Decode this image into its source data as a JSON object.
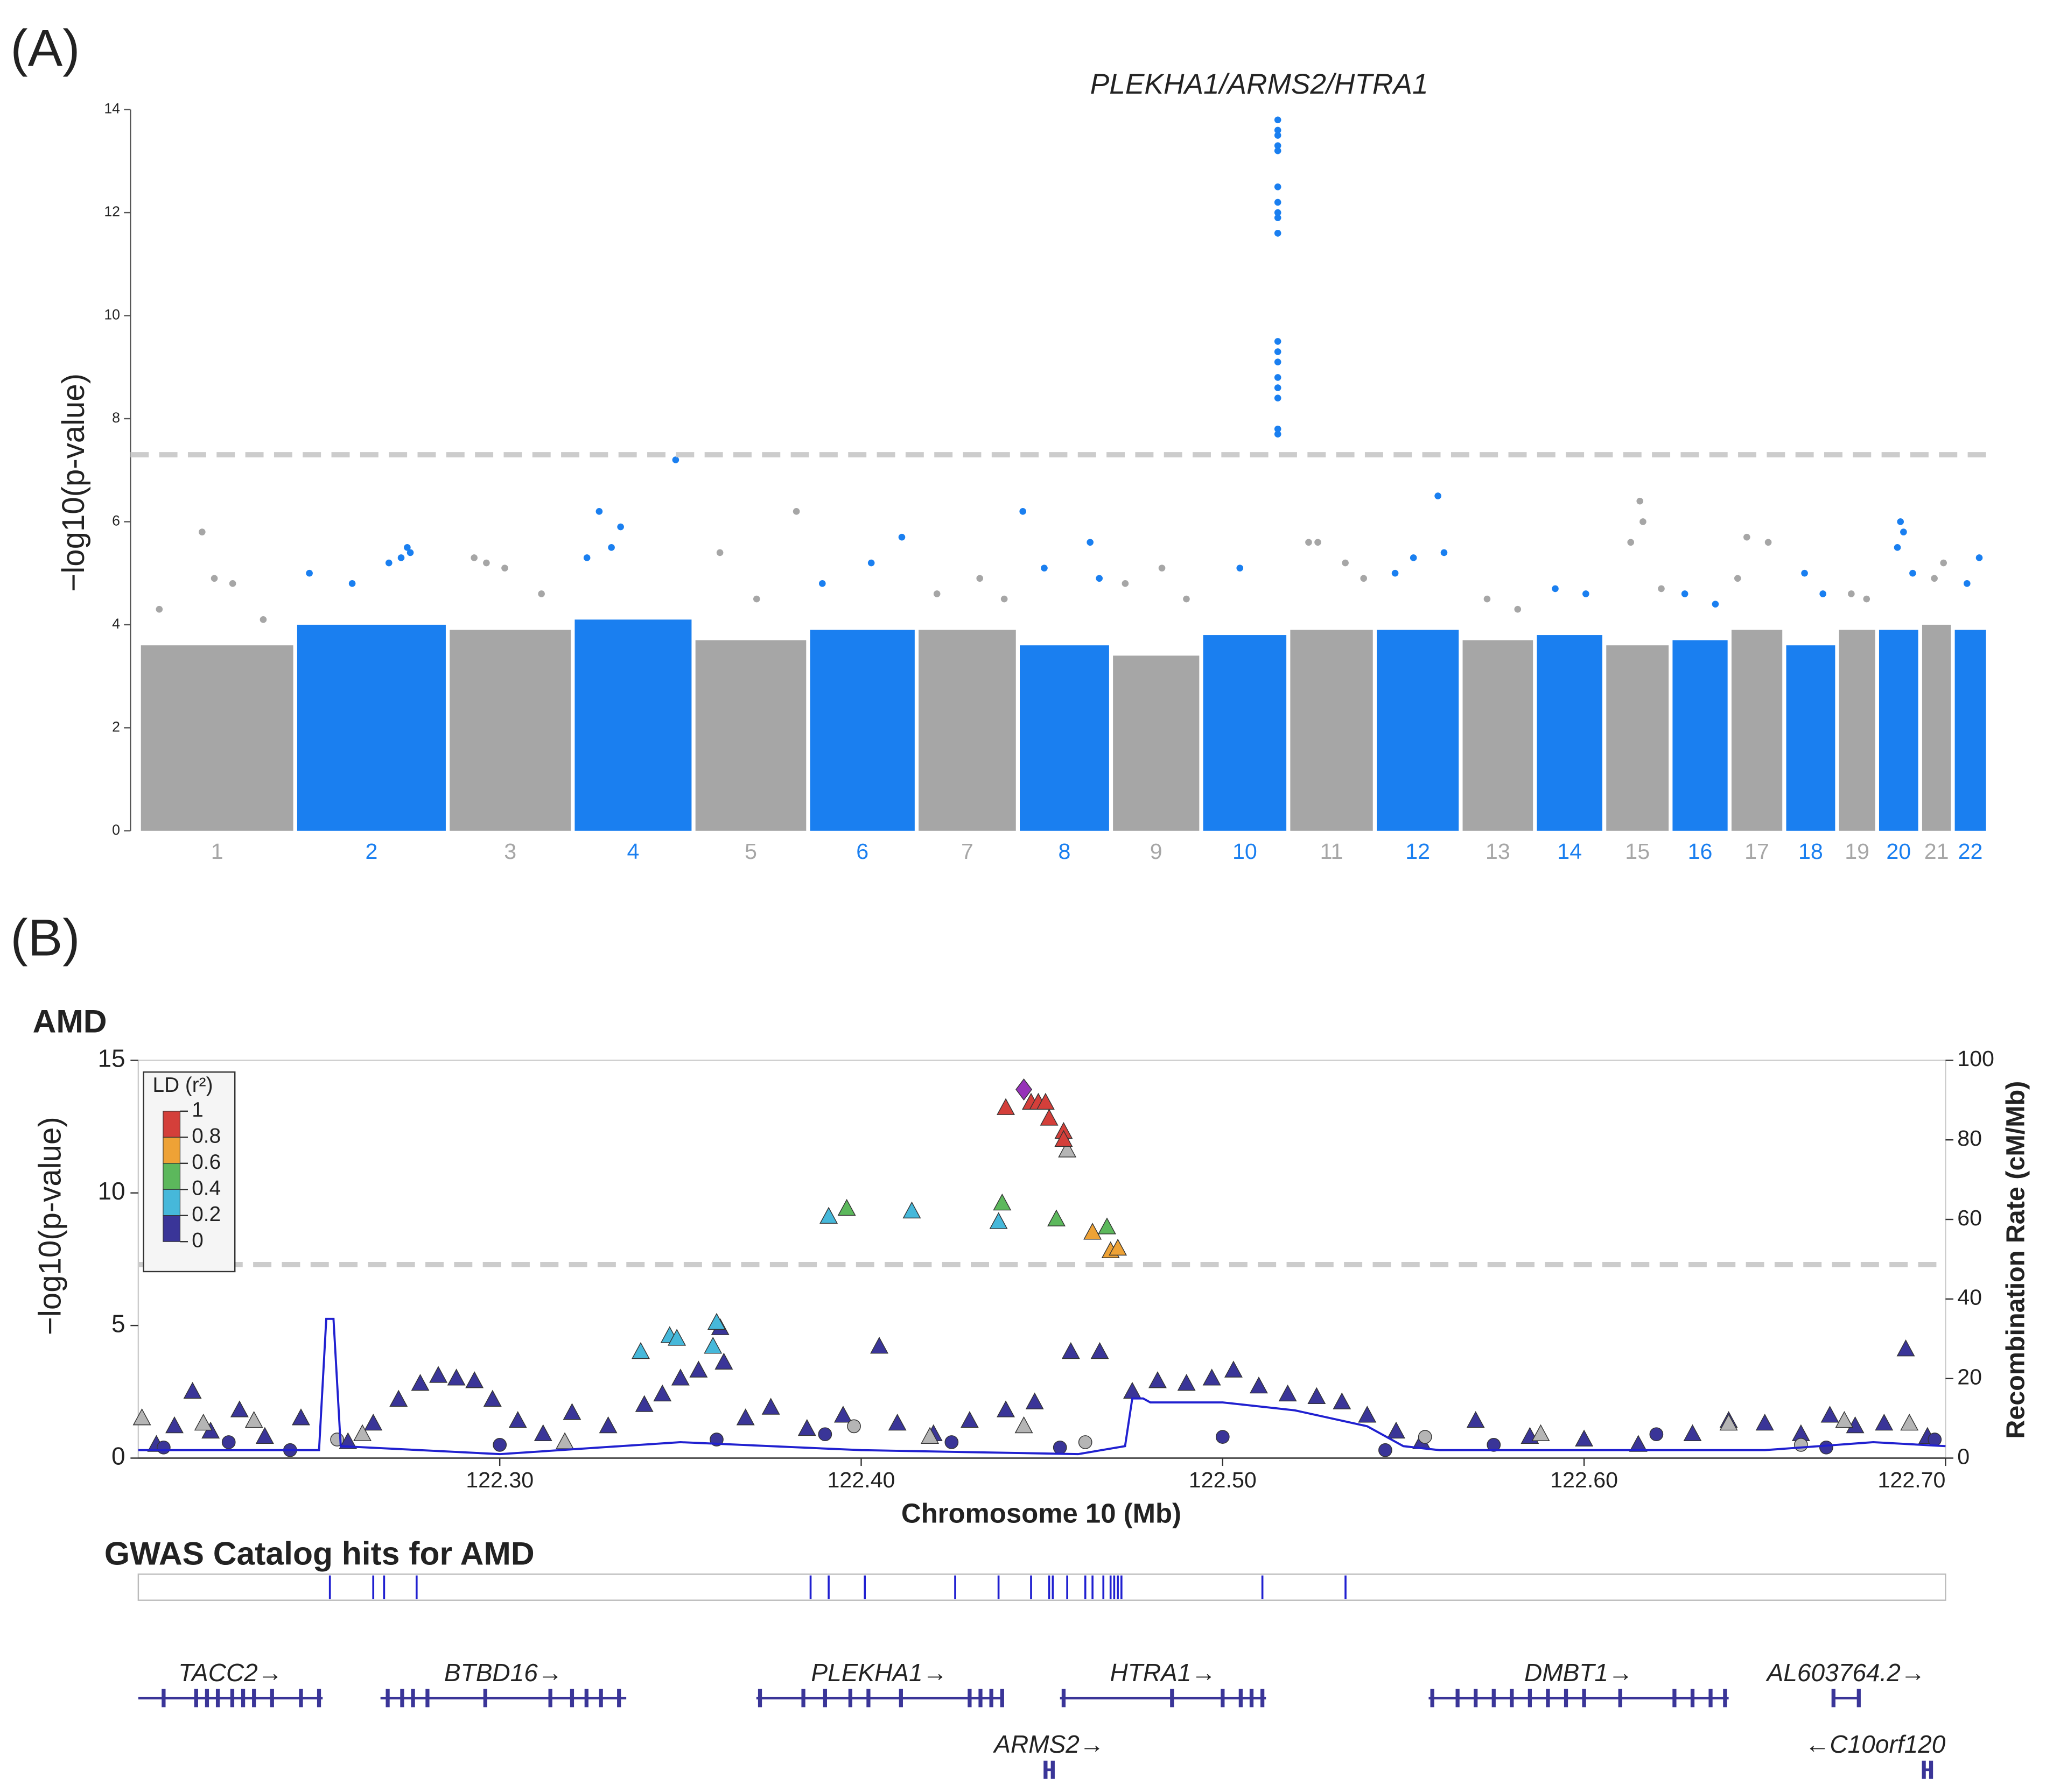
{
  "chart_data": [
    {
      "type": "manhattan",
      "panel_label": "(A)",
      "ylabel": "−log10(p-value)",
      "annotation": "PLEKHA1/ARMS2/HTRA1",
      "ylim": [
        0,
        14
      ],
      "yticks": [
        0,
        2,
        4,
        6,
        8,
        10,
        12,
        14
      ],
      "threshold": 7.3,
      "threshold_color": "#cccccc",
      "chromosomes": [
        {
          "name": "1",
          "length": 249,
          "color": "#a6a6a6",
          "bulk": 3.6,
          "x": [
            30,
            100,
            120,
            150,
            200
          ],
          "values": [
            4.3,
            5.8,
            4.9,
            4.8,
            4.1
          ]
        },
        {
          "name": "2",
          "length": 243,
          "color": "#1a7ff0",
          "bulk": 4.0,
          "x": [
            20,
            90,
            150,
            170,
            180,
            185
          ],
          "values": [
            5.0,
            4.8,
            5.2,
            5.3,
            5.5,
            5.4
          ]
        },
        {
          "name": "3",
          "length": 198,
          "color": "#a6a6a6",
          "bulk": 3.9,
          "x": [
            40,
            60,
            90,
            150
          ],
          "values": [
            5.3,
            5.2,
            5.1,
            4.6
          ]
        },
        {
          "name": "4",
          "length": 191,
          "color": "#1a7ff0",
          "bulk": 4.1,
          "x": [
            20,
            40,
            60,
            75,
            165
          ],
          "values": [
            5.3,
            6.2,
            5.5,
            5.9,
            7.2
          ]
        },
        {
          "name": "5",
          "length": 181,
          "color": "#a6a6a6",
          "bulk": 3.7,
          "x": [
            40,
            100,
            165
          ],
          "values": [
            5.4,
            4.5,
            6.2
          ]
        },
        {
          "name": "6",
          "length": 171,
          "color": "#1a7ff0",
          "bulk": 3.9,
          "x": [
            20,
            100,
            150
          ],
          "values": [
            4.8,
            5.2,
            5.7
          ]
        },
        {
          "name": "7",
          "length": 159,
          "color": "#a6a6a6",
          "bulk": 3.9,
          "x": [
            30,
            100,
            140
          ],
          "values": [
            4.6,
            4.9,
            4.5
          ]
        },
        {
          "name": "8",
          "length": 146,
          "color": "#1a7ff0",
          "bulk": 3.6,
          "x": [
            5,
            40,
            115,
            130
          ],
          "values": [
            6.2,
            5.1,
            5.6,
            4.9
          ]
        },
        {
          "name": "9",
          "length": 141,
          "color": "#a6a6a6",
          "bulk": 3.4,
          "x": [
            20,
            80,
            120
          ],
          "values": [
            4.8,
            5.1,
            4.5
          ]
        },
        {
          "name": "10",
          "length": 136,
          "color": "#1a7ff0",
          "bulk": 3.8,
          "x": [
            60,
            122,
            122,
            122,
            122,
            122,
            122,
            122,
            122,
            122,
            122,
            122,
            122,
            122,
            122,
            122,
            122,
            122,
            122
          ],
          "values": [
            5.1,
            13.8,
            13.6,
            13.5,
            13.3,
            13.2,
            12.5,
            12.2,
            12.0,
            11.9,
            11.6,
            9.5,
            9.3,
            9.1,
            8.8,
            8.6,
            8.4,
            7.8,
            7.7
          ]
        },
        {
          "name": "11",
          "length": 135,
          "color": "#a6a6a6",
          "bulk": 3.9,
          "x": [
            30,
            45,
            90,
            120
          ],
          "values": [
            5.6,
            5.6,
            5.2,
            4.9
          ]
        },
        {
          "name": "12",
          "length": 134,
          "color": "#1a7ff0",
          "bulk": 3.9,
          "x": [
            30,
            60,
            100,
            110
          ],
          "values": [
            5.0,
            5.3,
            6.5,
            5.4
          ]
        },
        {
          "name": "13",
          "length": 115,
          "color": "#a6a6a6",
          "bulk": 3.7,
          "x": [
            40,
            90
          ],
          "values": [
            4.5,
            4.3
          ]
        },
        {
          "name": "14",
          "length": 107,
          "color": "#1a7ff0",
          "bulk": 3.8,
          "x": [
            30,
            80
          ],
          "values": [
            4.7,
            4.6
          ]
        },
        {
          "name": "15",
          "length": 102,
          "color": "#a6a6a6",
          "bulk": 3.6,
          "x": [
            40,
            55,
            60,
            90
          ],
          "values": [
            5.6,
            6.4,
            6.0,
            4.7
          ]
        },
        {
          "name": "16",
          "length": 90,
          "color": "#1a7ff0",
          "bulk": 3.7,
          "x": [
            20,
            70
          ],
          "values": [
            4.6,
            4.4
          ]
        },
        {
          "name": "17",
          "length": 83,
          "color": "#a6a6a6",
          "bulk": 3.9,
          "x": [
            10,
            25,
            60
          ],
          "values": [
            4.9,
            5.7,
            5.6
          ]
        },
        {
          "name": "18",
          "length": 80,
          "color": "#1a7ff0",
          "bulk": 3.6,
          "x": [
            30,
            60
          ],
          "values": [
            5.0,
            4.6
          ]
        },
        {
          "name": "19",
          "length": 59,
          "color": "#a6a6a6",
          "bulk": 3.9,
          "x": [
            20,
            45
          ],
          "values": [
            4.6,
            4.5
          ]
        },
        {
          "name": "20",
          "length": 64,
          "color": "#1a7ff0",
          "bulk": 3.9,
          "x": [
            30,
            35,
            40,
            55
          ],
          "values": [
            5.5,
            6.0,
            5.8,
            5.0
          ]
        },
        {
          "name": "21",
          "length": 47,
          "color": "#a6a6a6",
          "bulk": 4.0,
          "x": [
            20,
            35
          ],
          "values": [
            4.9,
            5.2
          ]
        },
        {
          "name": "22",
          "length": 51,
          "color": "#1a7ff0",
          "bulk": 3.9,
          "x": [
            20,
            40
          ],
          "values": [
            4.8,
            5.3
          ]
        }
      ]
    },
    {
      "type": "locuszoom",
      "panel_label": "(B)",
      "title": "AMD",
      "ylabel": "−log10(p-value)",
      "y2label": "Recombination Rate (cM/Mb)",
      "xlabel": "Chromosome 10 (Mb)",
      "xlim": [
        122.2,
        122.7
      ],
      "xticks": [
        {
          "value": 122.3,
          "label": "122.30"
        },
        {
          "value": 122.4,
          "label": "122.40"
        },
        {
          "value": 122.5,
          "label": "122.50"
        },
        {
          "value": 122.6,
          "label": "122.60"
        },
        {
          "value": 122.7,
          "label": "122.70"
        }
      ],
      "ylim": [
        0,
        15
      ],
      "yticks": [
        0,
        5,
        10,
        15
      ],
      "y2lim": [
        0,
        100
      ],
      "y2ticks": [
        0,
        20,
        40,
        60,
        80,
        100
      ],
      "threshold": 7.3,
      "threshold_color": "#cccccc",
      "ld_legend": {
        "title": "LD (r²)",
        "ticks": [
          1,
          0.8,
          0.6,
          0.4,
          0.2,
          0
        ],
        "colors": [
          "#d43f3a",
          "#eea236",
          "#5cb85c",
          "#46b8da",
          "#3a3598"
        ]
      },
      "series": [
        {
          "color": "#3a3598",
          "marker": "triangle",
          "x": [
            122.205,
            122.21,
            122.215,
            122.22,
            122.228,
            122.235,
            122.245,
            122.258,
            122.265,
            122.272,
            122.278,
            122.283,
            122.288,
            122.293,
            122.298,
            122.305,
            122.312,
            122.32,
            122.33,
            122.34,
            122.345,
            122.35,
            122.355,
            122.361,
            122.362,
            122.368,
            122.375,
            122.385,
            122.395,
            122.405,
            122.41,
            122.42,
            122.43,
            122.44,
            122.448,
            122.458,
            122.466,
            122.475,
            122.482,
            122.49,
            122.497,
            122.503,
            122.51,
            122.518,
            122.526,
            122.533,
            122.54,
            122.548,
            122.555,
            122.57,
            122.585,
            122.6,
            122.615,
            122.63,
            122.64,
            122.65,
            122.66,
            122.668,
            122.675,
            122.683,
            122.689,
            122.695
          ],
          "values": [
            0.5,
            1.2,
            2.5,
            1.0,
            1.8,
            0.8,
            1.5,
            0.6,
            1.3,
            2.2,
            2.8,
            3.1,
            3.0,
            2.9,
            2.2,
            1.4,
            0.9,
            1.7,
            1.2,
            2.0,
            2.4,
            3.0,
            3.3,
            4.9,
            3.6,
            1.5,
            1.9,
            1.1,
            1.6,
            4.2,
            1.3,
            0.9,
            1.4,
            1.8,
            2.1,
            4.0,
            4.0,
            2.5,
            2.9,
            2.8,
            3.0,
            3.3,
            2.7,
            2.4,
            2.3,
            2.1,
            1.6,
            1.0,
            0.6,
            1.4,
            0.8,
            0.7,
            0.5,
            0.9,
            1.4,
            1.3,
            0.9,
            1.6,
            1.2,
            1.3,
            4.1,
            0.8
          ]
        },
        {
          "color": "#3a3598",
          "marker": "circle",
          "x": [
            122.207,
            122.225,
            122.242,
            122.3,
            122.36,
            122.39,
            122.425,
            122.455,
            122.5,
            122.545,
            122.575,
            122.62,
            122.667,
            122.697
          ],
          "values": [
            0.4,
            0.6,
            0.3,
            0.5,
            0.7,
            0.9,
            0.6,
            0.4,
            0.8,
            0.3,
            0.5,
            0.9,
            0.4,
            0.7
          ]
        },
        {
          "color": "#b5b5b5",
          "marker": "triangle",
          "x": [
            122.201,
            122.218,
            122.232,
            122.262,
            122.318,
            122.419,
            122.445,
            122.457,
            122.588,
            122.64,
            122.672,
            122.69
          ],
          "values": [
            1.5,
            1.3,
            1.4,
            0.9,
            0.6,
            0.8,
            1.2,
            11.6,
            0.9,
            1.3,
            1.4,
            1.3
          ]
        },
        {
          "color": "#b5b5b5",
          "marker": "circle",
          "x": [
            122.255,
            122.398,
            122.462,
            122.556,
            122.66
          ],
          "values": [
            0.7,
            1.2,
            0.6,
            0.8,
            0.5
          ]
        },
        {
          "color": "#46b8da",
          "marker": "triangle",
          "x": [
            122.391,
            122.414,
            122.438,
            122.339,
            122.347,
            122.349,
            122.36,
            122.359
          ],
          "values": [
            9.1,
            9.3,
            8.9,
            4.0,
            4.6,
            4.5,
            5.1,
            4.2
          ]
        },
        {
          "color": "#5cb85c",
          "marker": "triangle",
          "x": [
            122.396,
            122.439,
            122.454,
            122.468
          ],
          "values": [
            9.4,
            9.6,
            9.0,
            8.7
          ]
        },
        {
          "color": "#eea236",
          "marker": "triangle",
          "x": [
            122.464,
            122.469,
            122.471
          ],
          "values": [
            8.5,
            7.8,
            7.9
          ]
        },
        {
          "color": "#d43f3a",
          "marker": "triangle",
          "x": [
            122.44,
            122.447,
            122.449,
            122.451,
            122.452,
            122.456,
            122.456
          ],
          "values": [
            13.2,
            13.4,
            13.4,
            13.4,
            12.8,
            12.3,
            12.0
          ]
        },
        {
          "color": "#9632b8",
          "marker": "diamond",
          "x": [
            122.445
          ],
          "values": [
            13.9
          ]
        },
        {
          "color": "#2020d0",
          "marker": "line",
          "axis": "y2",
          "x": [
            122.2,
            122.25,
            122.252,
            122.254,
            122.256,
            122.3,
            122.35,
            122.4,
            122.46,
            122.473,
            122.475,
            122.478,
            122.48,
            122.5,
            122.52,
            122.54,
            122.55,
            122.56,
            122.6,
            122.65,
            122.68,
            122.7
          ],
          "values": [
            2,
            2,
            35,
            35,
            3,
            1,
            4,
            2,
            1,
            3,
            15,
            15,
            14,
            14,
            12,
            8,
            3,
            2,
            2,
            2,
            4,
            3
          ]
        }
      ],
      "gwas_title": "GWAS Catalog hits for AMD",
      "gwas_color": "#2020d0",
      "gwas_hits": [
        122.253,
        122.265,
        122.268,
        122.277,
        122.386,
        122.391,
        122.401,
        122.426,
        122.438,
        122.447,
        122.452,
        122.453,
        122.457,
        122.462,
        122.464,
        122.467,
        122.469,
        122.47,
        122.471,
        122.472,
        122.511,
        122.534
      ],
      "gene_color": "#3a3598",
      "genes": [
        {
          "name": "TACC2→",
          "row": 1,
          "start": 122.2,
          "end": 122.251,
          "exons": [
            122.207,
            122.216,
            122.219,
            122.222,
            122.226,
            122.229,
            122.232,
            122.237,
            122.245,
            122.25
          ]
        },
        {
          "name": "BTBD16→",
          "row": 1,
          "start": 122.267,
          "end": 122.335,
          "exons": [
            122.269,
            122.273,
            122.276,
            122.28,
            122.296,
            122.314,
            122.32,
            122.324,
            122.328,
            122.333
          ]
        },
        {
          "name": "PLEKHA1→",
          "row": 1,
          "start": 122.371,
          "end": 122.439,
          "exons": [
            122.372,
            122.384,
            122.39,
            122.397,
            122.402,
            122.411,
            122.43,
            122.433,
            122.436,
            122.439
          ]
        },
        {
          "name": "HTRA1→",
          "row": 1,
          "start": 122.455,
          "end": 122.512,
          "exons": [
            122.456,
            122.486,
            122.5,
            122.505,
            122.508,
            122.511
          ]
        },
        {
          "name": "DMBT1→",
          "row": 1,
          "start": 122.557,
          "end": 122.64,
          "exons": [
            122.558,
            122.565,
            122.57,
            122.575,
            122.58,
            122.585,
            122.59,
            122.595,
            122.6,
            122.61,
            122.625,
            122.63,
            122.635,
            122.639
          ]
        },
        {
          "name": "AL603764.2→",
          "row": 1,
          "start": 122.669,
          "end": 122.676,
          "exons": [
            122.669,
            122.676
          ]
        },
        {
          "name": "ARMS2→",
          "row": 2,
          "start": 122.451,
          "end": 122.453,
          "exons": [
            122.451,
            122.453
          ]
        },
        {
          "name": "←C10orf120",
          "row": 2,
          "start": 122.694,
          "end": 122.696,
          "exons": [
            122.694,
            122.696
          ]
        }
      ]
    }
  ]
}
